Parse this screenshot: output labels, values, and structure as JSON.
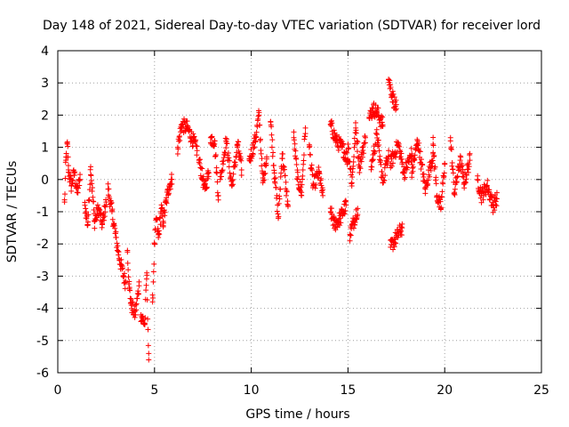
{
  "chart_data": {
    "type": "scatter",
    "title": "Day 148 of 2021, Sidereal Day-to-day VTEC variation (SDTVAR) for receiver lord",
    "xlabel": "GPS time / hours",
    "ylabel": "SDTVAR / TECUs",
    "xlim": [
      0,
      25
    ],
    "ylim": [
      -6,
      4
    ],
    "xticks": [
      0,
      5,
      10,
      15,
      20,
      25
    ],
    "yticks": [
      -6,
      -5,
      -4,
      -3,
      -2,
      -1,
      0,
      1,
      2,
      3,
      4
    ],
    "grid": true,
    "marker": "+",
    "color": "#ff0000",
    "series": [
      {
        "name": "SDTVAR",
        "segments": [
          {
            "x0": 0.35,
            "x1": 0.55,
            "points": [
              [
                0.35,
                -0.7
              ],
              [
                0.42,
                0.6
              ],
              [
                0.5,
                1.1
              ],
              [
                0.55,
                0.3
              ]
            ]
          },
          {
            "x0": 0.55,
            "x1": 1.15,
            "points": [
              [
                0.55,
                0.3
              ],
              [
                0.7,
                -0.2
              ],
              [
                0.85,
                0.2
              ],
              [
                1.0,
                -0.4
              ],
              [
                1.15,
                0.0
              ]
            ]
          },
          {
            "x0": 1.4,
            "x1": 1.9,
            "points": [
              [
                1.4,
                -0.8
              ],
              [
                1.55,
                -1.4
              ],
              [
                1.7,
                0.4
              ],
              [
                1.9,
                -1.3
              ]
            ]
          },
          {
            "x0": 1.9,
            "x1": 2.5,
            "points": [
              [
                1.9,
                -1.3
              ],
              [
                2.1,
                -0.9
              ],
              [
                2.3,
                -1.4
              ],
              [
                2.5,
                -0.7
              ]
            ]
          },
          {
            "x0": 2.6,
            "x1": 3.5,
            "points": [
              [
                2.6,
                -0.3
              ],
              [
                2.8,
                -1.0
              ],
              [
                3.0,
                -1.8
              ],
              [
                3.2,
                -2.5
              ],
              [
                3.4,
                -3.0
              ],
              [
                3.5,
                -3.2
              ]
            ]
          },
          {
            "x0": 3.6,
            "x1": 4.2,
            "points": [
              [
                3.6,
                -2.2
              ],
              [
                3.7,
                -3.4
              ],
              [
                3.8,
                -3.9
              ],
              [
                4.0,
                -4.2
              ],
              [
                4.2,
                -3.3
              ]
            ]
          },
          {
            "x0": 4.3,
            "x1": 4.7,
            "points": [
              [
                4.3,
                -4.2
              ],
              [
                4.5,
                -4.5
              ],
              [
                4.6,
                -2.9
              ],
              [
                4.7,
                -5.6
              ]
            ]
          },
          {
            "x0": 4.9,
            "x1": 5.45,
            "points": [
              [
                4.9,
                -3.8
              ],
              [
                5.0,
                -2.0
              ],
              [
                5.1,
                -1.2
              ],
              [
                5.2,
                -1.8
              ],
              [
                5.35,
                -0.9
              ],
              [
                5.45,
                -1.3
              ]
            ]
          },
          {
            "x0": 5.45,
            "x1": 5.9,
            "points": [
              [
                5.45,
                -1.3
              ],
              [
                5.6,
                -0.7
              ],
              [
                5.75,
                -0.2
              ],
              [
                5.9,
                0.0
              ]
            ]
          },
          {
            "x0": 6.2,
            "x1": 7.2,
            "points": [
              [
                6.2,
                1.0
              ],
              [
                6.4,
                1.7
              ],
              [
                6.7,
                1.6
              ],
              [
                7.0,
                1.2
              ],
              [
                7.2,
                0.9
              ]
            ]
          },
          {
            "x0": 7.3,
            "x1": 7.8,
            "points": [
              [
                7.3,
                0.6
              ],
              [
                7.5,
                0.0
              ],
              [
                7.6,
                -0.3
              ],
              [
                7.8,
                0.2
              ]
            ]
          },
          {
            "x0": 7.9,
            "x1": 8.3,
            "points": [
              [
                7.9,
                1.3
              ],
              [
                8.1,
                1.2
              ],
              [
                8.3,
                -0.5
              ]
            ]
          },
          {
            "x0": 8.4,
            "x1": 9.5,
            "points": [
              [
                8.4,
                0.0
              ],
              [
                8.7,
                1.2
              ],
              [
                9.0,
                -0.2
              ],
              [
                9.3,
                1.1
              ],
              [
                9.5,
                0.3
              ]
            ]
          },
          {
            "x0": 9.9,
            "x1": 10.8,
            "points": [
              [
                9.9,
                0.6
              ],
              [
                10.2,
                1.2
              ],
              [
                10.4,
                2.0
              ],
              [
                10.6,
                -0.1
              ],
              [
                10.8,
                0.7
              ]
            ]
          },
          {
            "x0": 11.0,
            "x1": 11.9,
            "points": [
              [
                11.0,
                1.8
              ],
              [
                11.2,
                0.2
              ],
              [
                11.4,
                -1.2
              ],
              [
                11.6,
                0.8
              ],
              [
                11.9,
                -0.8
              ]
            ]
          },
          {
            "x0": 12.2,
            "x1": 12.8,
            "points": [
              [
                12.2,
                1.3
              ],
              [
                12.4,
                0.0
              ],
              [
                12.6,
                -0.4
              ],
              [
                12.8,
                1.6
              ]
            ]
          },
          {
            "x0": 13.0,
            "x1": 13.7,
            "points": [
              [
                13.0,
                1.0
              ],
              [
                13.2,
                -0.2
              ],
              [
                13.5,
                0.2
              ],
              [
                13.7,
                -0.5
              ]
            ]
          },
          {
            "x0": 14.1,
            "x1": 14.9,
            "points": [
              [
                14.1,
                -1.0
              ],
              [
                14.3,
                -1.4
              ],
              [
                14.6,
                -1.2
              ],
              [
                14.9,
                -0.8
              ]
            ]
          },
          {
            "x0": 14.1,
            "x1": 15.0,
            "points": [
              [
                14.1,
                1.7
              ],
              [
                14.4,
                1.2
              ],
              [
                14.7,
                1.0
              ],
              [
                15.0,
                0.6
              ]
            ]
          },
          {
            "x0": 15.0,
            "x1": 15.9,
            "points": [
              [
                15.0,
                1.1
              ],
              [
                15.2,
                -0.1
              ],
              [
                15.4,
                1.6
              ],
              [
                15.6,
                0.4
              ],
              [
                15.9,
                1.3
              ]
            ]
          },
          {
            "x0": 15.1,
            "x1": 15.5,
            "points": [
              [
                15.1,
                -1.7
              ],
              [
                15.3,
                -1.3
              ],
              [
                15.5,
                -0.9
              ]
            ]
          },
          {
            "x0": 16.1,
            "x1": 16.8,
            "points": [
              [
                16.1,
                1.9
              ],
              [
                16.3,
                2.2
              ],
              [
                16.5,
                2.1
              ],
              [
                16.8,
                1.7
              ]
            ]
          },
          {
            "x0": 16.2,
            "x1": 17.1,
            "points": [
              [
                16.2,
                0.4
              ],
              [
                16.5,
                1.4
              ],
              [
                16.8,
                -0.1
              ],
              [
                17.1,
                0.9
              ]
            ]
          },
          {
            "x0": 17.1,
            "x1": 17.5,
            "points": [
              [
                17.1,
                3.1
              ],
              [
                17.3,
                2.6
              ],
              [
                17.5,
                2.2
              ]
            ]
          },
          {
            "x0": 17.2,
            "x1": 17.8,
            "points": [
              [
                17.2,
                -2.1
              ],
              [
                17.5,
                -1.8
              ],
              [
                17.8,
                -1.5
              ]
            ]
          },
          {
            "x0": 17.2,
            "x1": 18.3,
            "points": [
              [
                17.2,
                0.5
              ],
              [
                17.6,
                1.1
              ],
              [
                17.9,
                0.2
              ],
              [
                18.3,
                0.8
              ]
            ]
          },
          {
            "x0": 18.3,
            "x1": 19.4,
            "points": [
              [
                18.3,
                0.2
              ],
              [
                18.6,
                1.2
              ],
              [
                19.0,
                -0.3
              ],
              [
                19.4,
                0.8
              ]
            ]
          },
          {
            "x0": 19.4,
            "x1": 20.0,
            "points": [
              [
                19.4,
                1.1
              ],
              [
                19.6,
                -0.5
              ],
              [
                19.8,
                -0.9
              ],
              [
                20.0,
                0.5
              ]
            ]
          },
          {
            "x0": 20.3,
            "x1": 21.3,
            "points": [
              [
                20.3,
                1.2
              ],
              [
                20.5,
                -0.4
              ],
              [
                20.8,
                0.6
              ],
              [
                21.0,
                -0.1
              ],
              [
                21.3,
                0.6
              ]
            ]
          },
          {
            "x0": 21.7,
            "x1": 22.7,
            "points": [
              [
                21.7,
                0.0
              ],
              [
                21.9,
                -0.5
              ],
              [
                22.2,
                -0.2
              ],
              [
                22.5,
                -0.8
              ],
              [
                22.7,
                -0.6
              ]
            ]
          }
        ]
      }
    ]
  }
}
